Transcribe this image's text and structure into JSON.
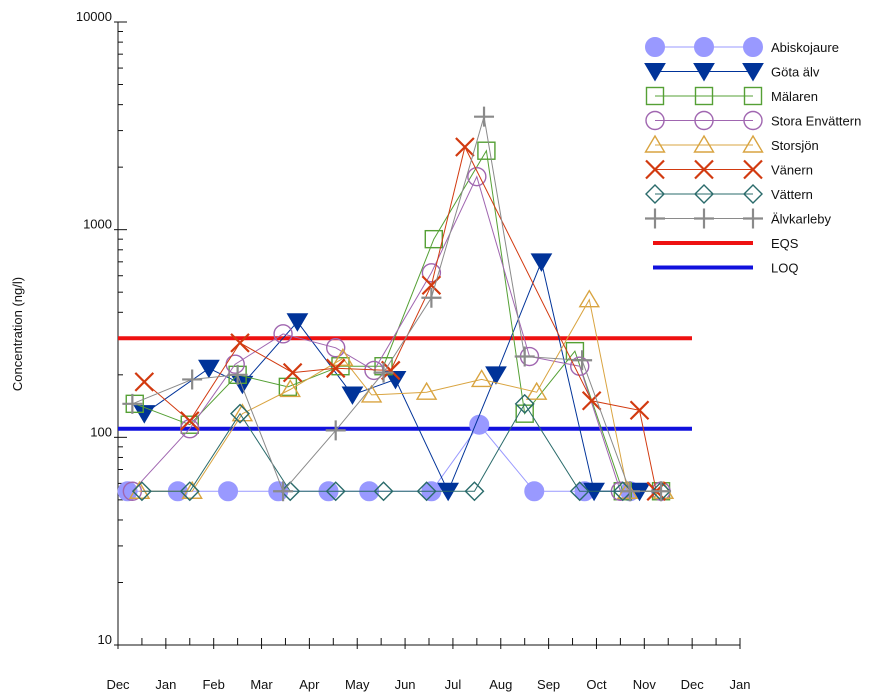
{
  "chart_data": {
    "type": "line",
    "title": "",
    "xlabel": "",
    "ylabel": "Concentration (ng/l)",
    "yscale": "log",
    "ylim": [
      10,
      10000
    ],
    "xlim": [
      0,
      13
    ],
    "grid": false,
    "legend_position": "top-right",
    "x_ticks": [
      "Dec",
      "Jan",
      "Feb",
      "Mar",
      "Apr",
      "May",
      "Jun",
      "Jul",
      "Aug",
      "Sep",
      "Oct",
      "Nov",
      "Dec",
      "Jan"
    ],
    "y_ticks": [
      {
        "value": 10,
        "label": "10"
      },
      {
        "value": 100,
        "label": "100"
      },
      {
        "value": 1000,
        "label": "1000"
      },
      {
        "value": 10000,
        "label": "10000"
      }
    ],
    "series": [
      {
        "name": "Abiskojaure",
        "color": "#9999ff",
        "marker": "filled-circle",
        "points": [
          [
            0.2,
            55
          ],
          [
            1.25,
            55
          ],
          [
            2.3,
            55
          ],
          [
            3.35,
            55
          ],
          [
            4.4,
            55
          ],
          [
            5.25,
            55
          ],
          [
            6.55,
            55
          ],
          [
            7.55,
            115
          ],
          [
            8.7,
            55
          ],
          [
            9.75,
            55
          ],
          [
            10.7,
            55
          ]
        ]
      },
      {
        "name": "Göta älv",
        "color": "#003399",
        "marker": "filled-triangle-down",
        "points": [
          [
            0.55,
            130
          ],
          [
            1.9,
            215
          ],
          [
            2.6,
            180
          ],
          [
            3.75,
            360
          ],
          [
            4.9,
            160
          ],
          [
            5.8,
            190
          ],
          [
            6.9,
            55
          ],
          [
            7.9,
            200
          ],
          [
            8.85,
            700
          ],
          [
            9.95,
            55
          ],
          [
            10.9,
            55
          ]
        ]
      },
      {
        "name": "Mälaren",
        "color": "#55a035",
        "marker": "open-square",
        "points": [
          [
            0.35,
            145
          ],
          [
            1.5,
            115
          ],
          [
            2.5,
            200
          ],
          [
            3.55,
            175
          ],
          [
            4.65,
            220
          ],
          [
            5.55,
            220
          ],
          [
            6.6,
            900
          ],
          [
            7.7,
            2400
          ],
          [
            8.5,
            130
          ],
          [
            9.55,
            260
          ],
          [
            10.55,
            55
          ],
          [
            11.35,
            55
          ]
        ]
      },
      {
        "name": "Stora Envättern",
        "color": "#a066b0",
        "marker": "open-circle",
        "points": [
          [
            0.3,
            55
          ],
          [
            1.5,
            110
          ],
          [
            2.45,
            225
          ],
          [
            3.45,
            315
          ],
          [
            4.55,
            270
          ],
          [
            5.35,
            210
          ],
          [
            6.55,
            620
          ],
          [
            7.5,
            1800
          ],
          [
            8.6,
            245
          ],
          [
            9.65,
            220
          ],
          [
            10.5,
            55
          ],
          [
            11.35,
            55
          ]
        ]
      },
      {
        "name": "Storsjön",
        "color": "#d9a440",
        "marker": "open-triangle-up",
        "points": [
          [
            0.45,
            55
          ],
          [
            1.55,
            55
          ],
          [
            2.6,
            130
          ],
          [
            3.6,
            170
          ],
          [
            4.7,
            240
          ],
          [
            5.3,
            160
          ],
          [
            6.45,
            165
          ],
          [
            7.6,
            190
          ],
          [
            8.75,
            165
          ],
          [
            9.85,
            460
          ],
          [
            10.65,
            55
          ],
          [
            11.4,
            55
          ]
        ]
      },
      {
        "name": "Vänern",
        "color": "#d23a10",
        "marker": "x",
        "points": [
          [
            0.55,
            185
          ],
          [
            1.5,
            120
          ],
          [
            2.55,
            285
          ],
          [
            3.65,
            205
          ],
          [
            4.55,
            215
          ],
          [
            5.7,
            210
          ],
          [
            6.55,
            540
          ],
          [
            7.25,
            2500
          ],
          [
            9.9,
            150
          ],
          [
            10.9,
            135
          ],
          [
            11.25,
            55
          ]
        ]
      },
      {
        "name": "Vättern",
        "color": "#2a6b6b",
        "marker": "open-diamond",
        "points": [
          [
            0.5,
            55
          ],
          [
            1.5,
            55
          ],
          [
            2.55,
            130
          ],
          [
            3.6,
            55
          ],
          [
            4.55,
            55
          ],
          [
            5.55,
            55
          ],
          [
            6.45,
            55
          ],
          [
            7.45,
            55
          ],
          [
            8.5,
            145
          ],
          [
            9.65,
            55
          ],
          [
            10.55,
            55
          ],
          [
            11.35,
            55
          ]
        ]
      },
      {
        "name": "Älvkarleby",
        "color": "#8a8a8a",
        "marker": "plus",
        "points": [
          [
            0.3,
            145
          ],
          [
            1.55,
            190
          ],
          [
            2.5,
            200
          ],
          [
            3.45,
            55
          ],
          [
            4.55,
            108
          ],
          [
            5.55,
            205
          ],
          [
            6.55,
            470
          ],
          [
            7.65,
            3500
          ],
          [
            8.5,
            245
          ],
          [
            9.7,
            235
          ],
          [
            10.7,
            55
          ],
          [
            11.35,
            55
          ]
        ]
      }
    ],
    "reference_lines": [
      {
        "name": "EQS",
        "value": 300,
        "color": "#ee1111"
      },
      {
        "name": "LOQ",
        "value": 110,
        "color": "#1111dd"
      }
    ]
  }
}
